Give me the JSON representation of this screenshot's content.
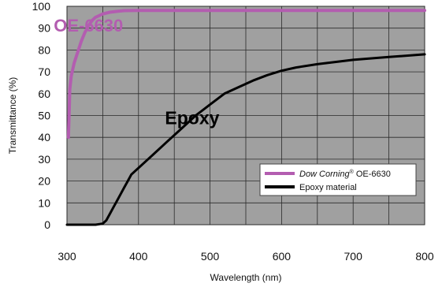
{
  "chart_data": {
    "type": "line",
    "xlabel": "Wavelength (nm)",
    "ylabel": "Transmittance (%)",
    "xlim": [
      300,
      800
    ],
    "ylim": [
      0,
      100
    ],
    "xticks": [
      "300",
      "400",
      "500",
      "600",
      "700",
      "800"
    ],
    "yticks": [
      "0",
      "10",
      "20",
      "30",
      "40",
      "50",
      "60",
      "70",
      "80",
      "90",
      "100"
    ],
    "grid": true,
    "background_color": "#a0a0a0",
    "legend_position": "bottom-right",
    "series": [
      {
        "name": "Dow Corning® OE-6630",
        "name_italic": "Dow Corning",
        "name_sup": "®",
        "name_rest": " OE-6630",
        "color": "#b35db0",
        "x": [
          302,
          303,
          304,
          306,
          310,
          315,
          320,
          325,
          330,
          335,
          340,
          350,
          360,
          370,
          380,
          400,
          450,
          500,
          600,
          700,
          800
        ],
        "y": [
          40,
          50,
          62,
          68,
          74,
          79,
          84,
          88,
          91,
          93.5,
          95,
          96.5,
          97.3,
          97.7,
          98,
          98.1,
          98.1,
          98.1,
          98.1,
          98.1,
          98.1
        ]
      },
      {
        "name": "Epoxy material",
        "color": "#000000",
        "x": [
          300,
          320,
          340,
          350,
          355,
          360,
          365,
          370,
          375,
          380,
          385,
          390,
          400,
          410,
          420,
          440,
          460,
          480,
          500,
          520,
          540,
          560,
          580,
          600,
          620,
          650,
          700,
          750,
          800
        ],
        "y": [
          0,
          0,
          0,
          0.5,
          2,
          5,
          8,
          11,
          14,
          17,
          20,
          23,
          26,
          29,
          32,
          38,
          44,
          50,
          55,
          60,
          63,
          66,
          68.5,
          70.5,
          72,
          73.5,
          75.5,
          76.8,
          78
        ]
      }
    ],
    "annotations": [
      {
        "text": "OE-6630",
        "x": 330,
        "y": 88.5,
        "color": "#b35db0"
      },
      {
        "text": "Epoxy",
        "x": 475,
        "y": 46,
        "color": "#000000"
      }
    ]
  }
}
